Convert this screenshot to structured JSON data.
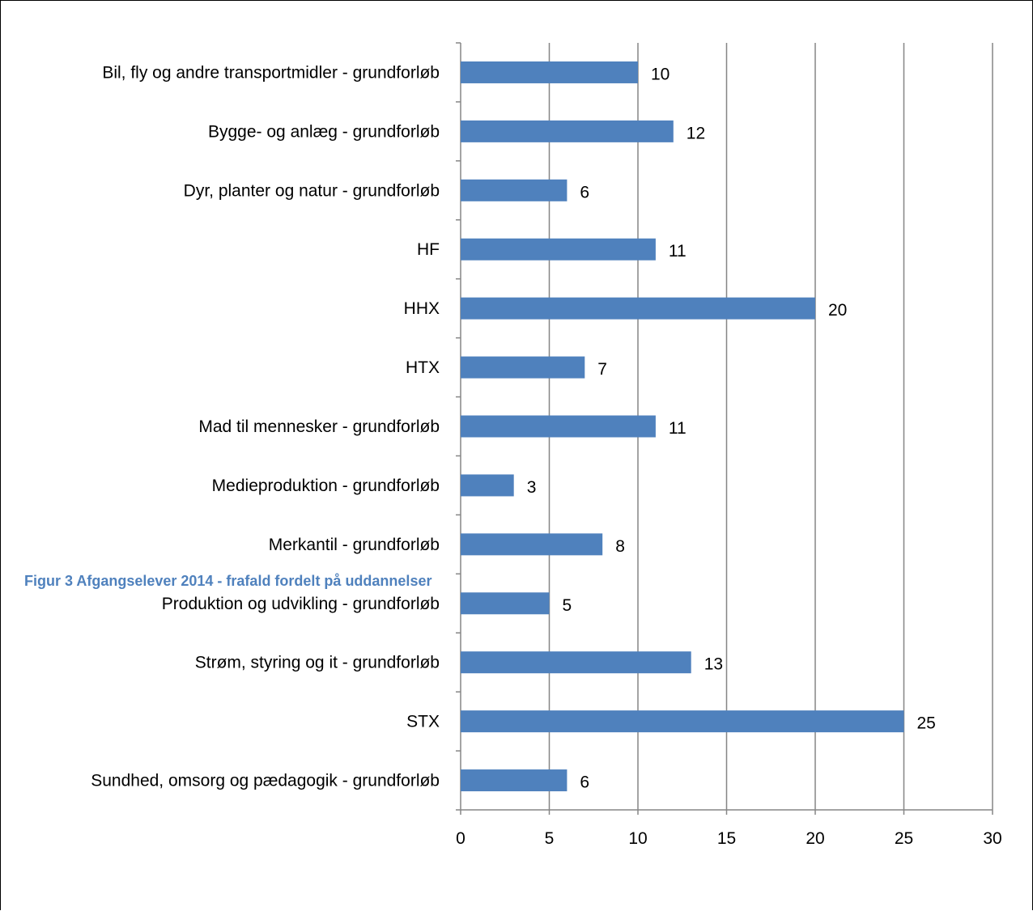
{
  "caption": "Figur 3 Afgangselever 2014 - frafald fordelt på uddannelser",
  "chart_data": {
    "type": "bar",
    "orientation": "horizontal",
    "categories": [
      "Bil, fly og andre transportmidler - grundforløb",
      "Bygge- og anlæg - grundforløb",
      "Dyr, planter og natur - grundforløb",
      "HF",
      "HHX",
      "HTX",
      "Mad til mennesker - grundforløb",
      "Medieproduktion - grundforløb",
      "Merkantil - grundforløb",
      "Produktion og udvikling - grundforløb",
      "Strøm, styring og it - grundforløb",
      "STX",
      "Sundhed, omsorg og pædagogik - grundforløb"
    ],
    "values": [
      10,
      12,
      6,
      11,
      20,
      7,
      11,
      3,
      8,
      5,
      13,
      25,
      6
    ],
    "data_labels": [
      "10",
      "12",
      "6",
      "11",
      "20",
      "7",
      "11",
      "3",
      "8",
      "5",
      "13",
      "25",
      "6"
    ],
    "xlim": [
      0,
      30
    ],
    "x_ticks": [
      "0",
      "5",
      "10",
      "15",
      "20",
      "25",
      "30"
    ],
    "grid": "vertical",
    "legend": "none",
    "bar_color": "#4f81bd",
    "grid_color": "#868686"
  }
}
